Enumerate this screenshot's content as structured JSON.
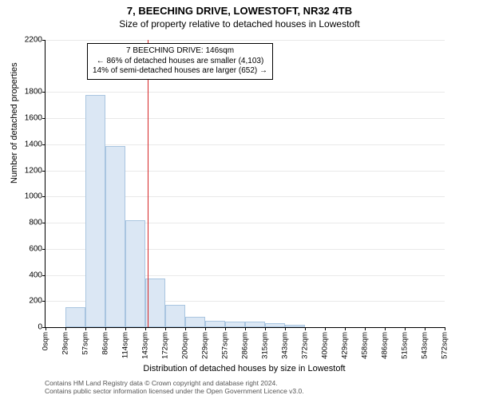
{
  "title": "7, BEECHING DRIVE, LOWESTOFT, NR32 4TB",
  "subtitle": "Size of property relative to detached houses in Lowestoft",
  "yaxis_label": "Number of detached properties",
  "xaxis_label": "Distribution of detached houses by size in Lowestoft",
  "footer_line1": "Contains HM Land Registry data © Crown copyright and database right 2024.",
  "footer_line2": "Contains public sector information licensed under the Open Government Licence v3.0.",
  "chart": {
    "type": "histogram",
    "ylim": [
      0,
      2200
    ],
    "yticks": [
      0,
      200,
      400,
      600,
      800,
      1000,
      1200,
      1400,
      1600,
      1800,
      2200
    ],
    "xticks": [
      "0sqm",
      "29sqm",
      "57sqm",
      "86sqm",
      "114sqm",
      "143sqm",
      "172sqm",
      "200sqm",
      "229sqm",
      "257sqm",
      "286sqm",
      "315sqm",
      "343sqm",
      "372sqm",
      "400sqm",
      "429sqm",
      "458sqm",
      "486sqm",
      "515sqm",
      "543sqm",
      "572sqm"
    ],
    "bar_values": [
      0,
      150,
      1780,
      1390,
      820,
      370,
      170,
      80,
      50,
      40,
      40,
      30,
      20,
      0,
      0,
      0,
      0,
      0,
      0,
      0
    ],
    "bar_fill": "#dbe7f4",
    "bar_stroke": "#a9c5e0",
    "grid_color": "#e9e9e9",
    "background": "#ffffff",
    "reference_line": {
      "value_sqm": 146,
      "color": "#d62728"
    },
    "annotation": {
      "line1": "7 BEECHING DRIVE: 146sqm",
      "line2": "← 86% of detached houses are smaller (4,103)",
      "line3": "14% of semi-detached houses are larger (652) →"
    }
  }
}
